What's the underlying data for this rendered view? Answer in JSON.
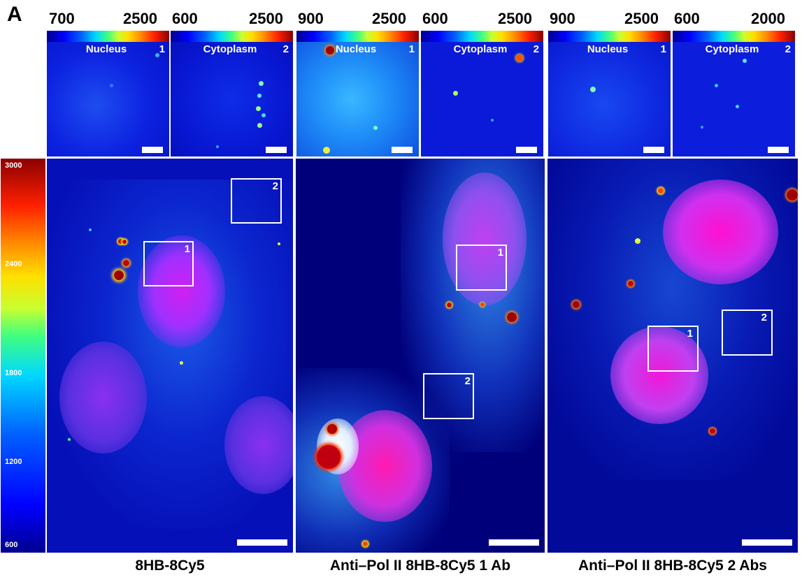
{
  "panel_label": "A",
  "insets": [
    {
      "min": "700",
      "max": "2500",
      "title": "Nucleus",
      "num": "1"
    },
    {
      "min": "600",
      "max": "2500",
      "title": "Cytoplasm",
      "num": "2"
    },
    {
      "min": "900",
      "max": "2500",
      "title": "Nucleus",
      "num": "1"
    },
    {
      "min": "600",
      "max": "2500",
      "title": "Cytoplasm",
      "num": "2"
    },
    {
      "min": "900",
      "max": "2500",
      "title": "Nucleus",
      "num": "1"
    },
    {
      "min": "600",
      "max": "2000",
      "title": "Cytoplasm",
      "num": "2"
    }
  ],
  "colorbar": {
    "ticks": [
      "3000",
      "2400",
      "1800",
      "1200",
      "600"
    ]
  },
  "main_panels": [
    {
      "caption": "8HB-8Cy5",
      "roi1": "1",
      "roi2": "2"
    },
    {
      "caption": "Anti–Pol II 8HB-8Cy5 1 Ab",
      "roi1": "1",
      "roi2": "2"
    },
    {
      "caption": "Anti–Pol II 8HB-8Cy5 2 Abs",
      "roi1": "1",
      "roi2": "2"
    }
  ]
}
